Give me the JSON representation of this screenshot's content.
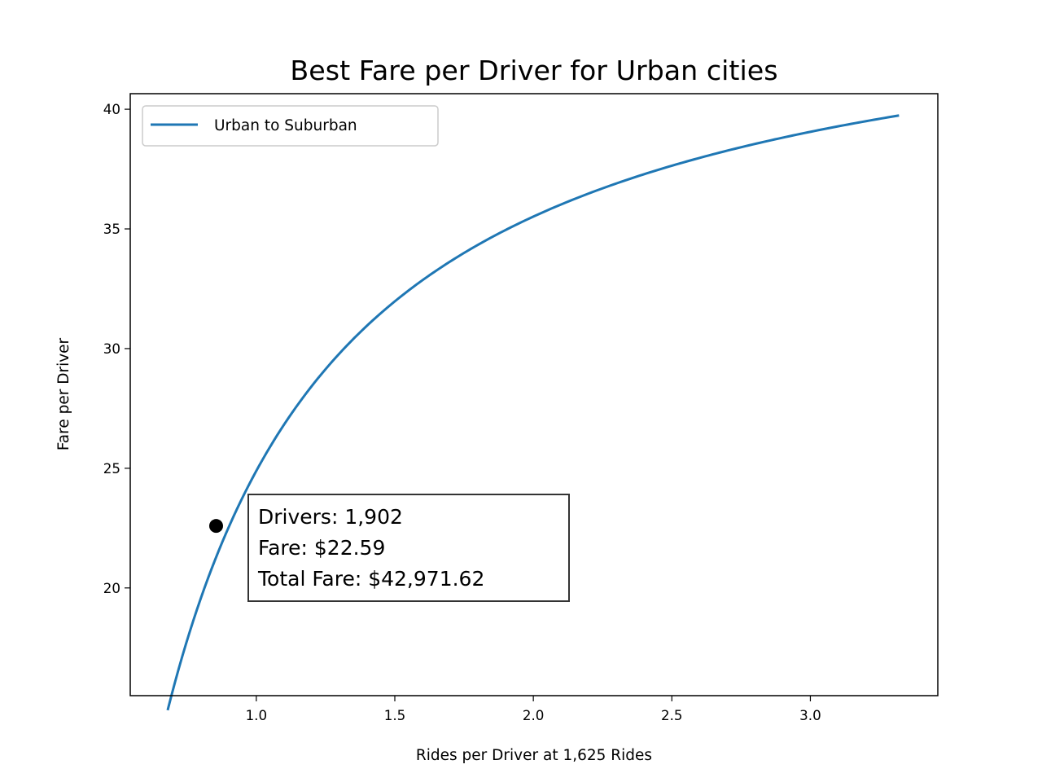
{
  "chart_data": {
    "type": "line",
    "title": "Best Fare per Driver for Urban cities",
    "xlabel": "Rides per Driver at 1,625 Rides",
    "ylabel": "Fare per Driver",
    "xlim": [
      0.545,
      3.46
    ],
    "ylim": [
      15.5,
      40.65
    ],
    "xticks": [
      1.0,
      1.5,
      2.0,
      2.5,
      3.0
    ],
    "xtick_labels": [
      "1.0",
      "1.5",
      "2.0",
      "2.5",
      "3.0"
    ],
    "yticks": [
      20,
      25,
      30,
      35,
      40
    ],
    "ytick_labels": [
      "20",
      "25",
      "30",
      "35",
      "40"
    ],
    "grid": false,
    "legend": {
      "location": "upper-left",
      "entries": [
        "Urban to Suburban"
      ]
    },
    "series": [
      {
        "name": "Urban to Suburban",
        "color": "#1f77b4",
        "model": "hyperbolic",
        "a": 46.14,
        "b": 21.25,
        "x_start": 0.68,
        "x_end": 3.32
      }
    ],
    "highlight_point": {
      "x": 0.855,
      "y": 22.59,
      "color": "#000000"
    },
    "annotation": {
      "lines": [
        "Drivers: 1,902",
        "Fare: $22.59",
        "Total Fare: $42,971.62"
      ]
    }
  }
}
